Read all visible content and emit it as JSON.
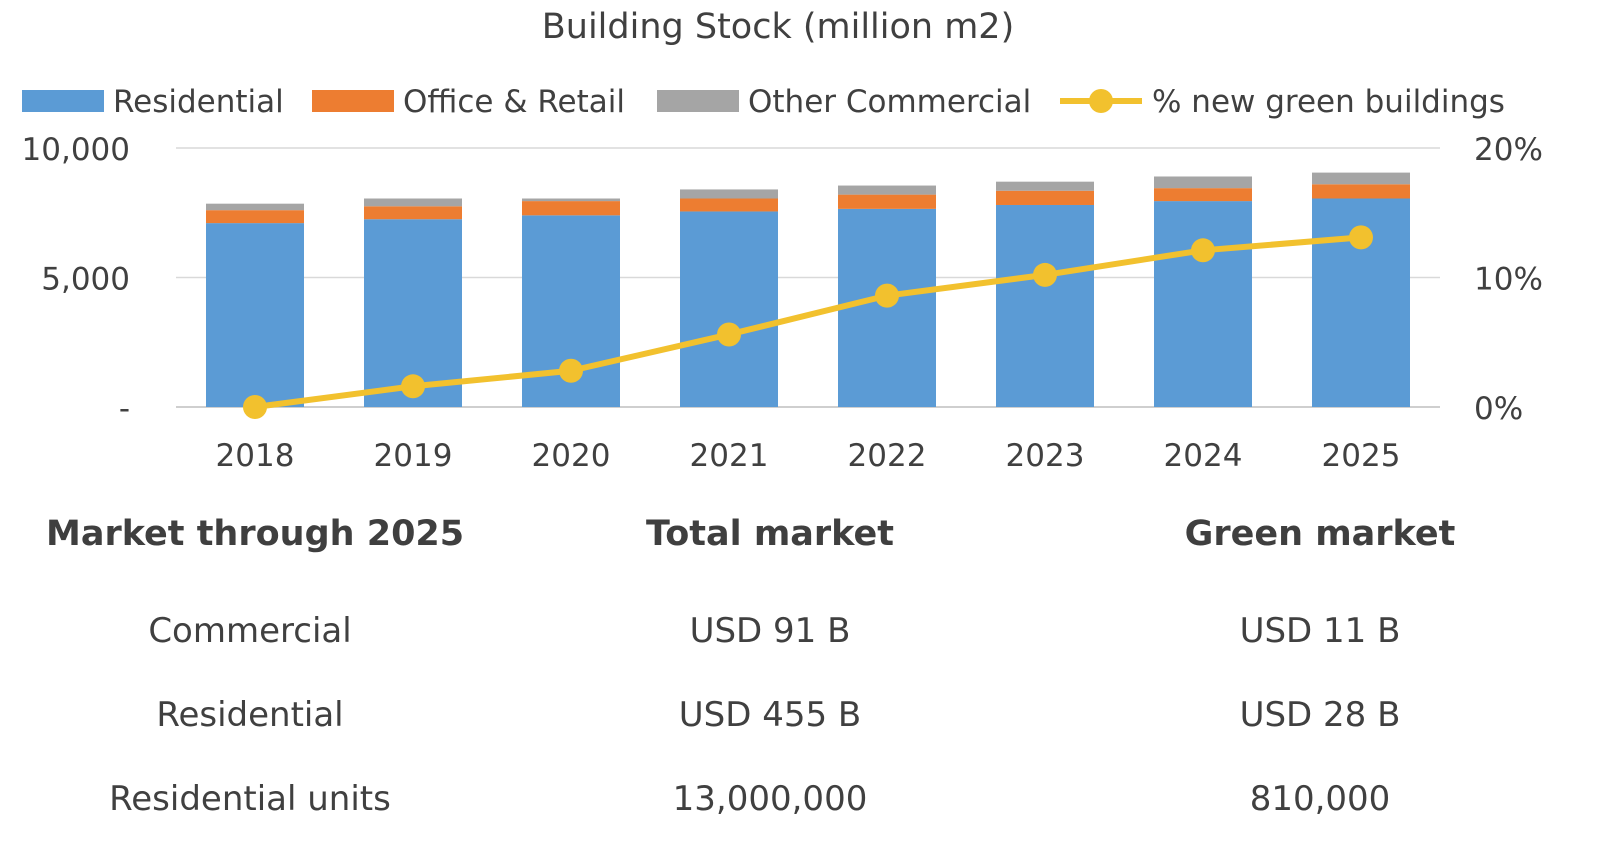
{
  "chart_data": {
    "type": "bar",
    "stacked": true,
    "title": "Building Stock (million m2)",
    "categories": [
      "2018",
      "2019",
      "2020",
      "2021",
      "2022",
      "2023",
      "2024",
      "2025"
    ],
    "series": [
      {
        "name": "Residential",
        "color": "#5b9bd5",
        "axis": "left",
        "values": [
          7100,
          7250,
          7400,
          7550,
          7650,
          7800,
          7950,
          8050
        ]
      },
      {
        "name": "Office & Retail",
        "color": "#ed7d31",
        "axis": "left",
        "values": [
          500,
          500,
          550,
          500,
          550,
          550,
          500,
          550
        ]
      },
      {
        "name": "Other Commercial",
        "color": "#a5a5a5",
        "axis": "left",
        "values": [
          250,
          300,
          100,
          350,
          350,
          350,
          450,
          450
        ]
      },
      {
        "name": "% new green buildings",
        "color": "#f2c12e",
        "type": "line",
        "axis": "right",
        "values": [
          0.0,
          1.6,
          2.8,
          5.6,
          8.6,
          10.2,
          12.1,
          13.1
        ]
      }
    ],
    "ylim": [
      0,
      10000
    ],
    "y_ticks": [
      "-",
      "5,000",
      "10,000"
    ],
    "y2lim": [
      0,
      20
    ],
    "y2_ticks": [
      "0%",
      "10%",
      "20%"
    ],
    "legend_position": "top",
    "grid": true
  },
  "table": {
    "headers": [
      "Market through 2025",
      "Total market",
      "Green market"
    ],
    "rows": [
      [
        "Commercial",
        "USD 91 B",
        "USD 11 B"
      ],
      [
        "Residential",
        "USD 455 B",
        "USD 28  B"
      ],
      [
        "Residential units",
        "13,000,000",
        "810,000"
      ]
    ]
  }
}
